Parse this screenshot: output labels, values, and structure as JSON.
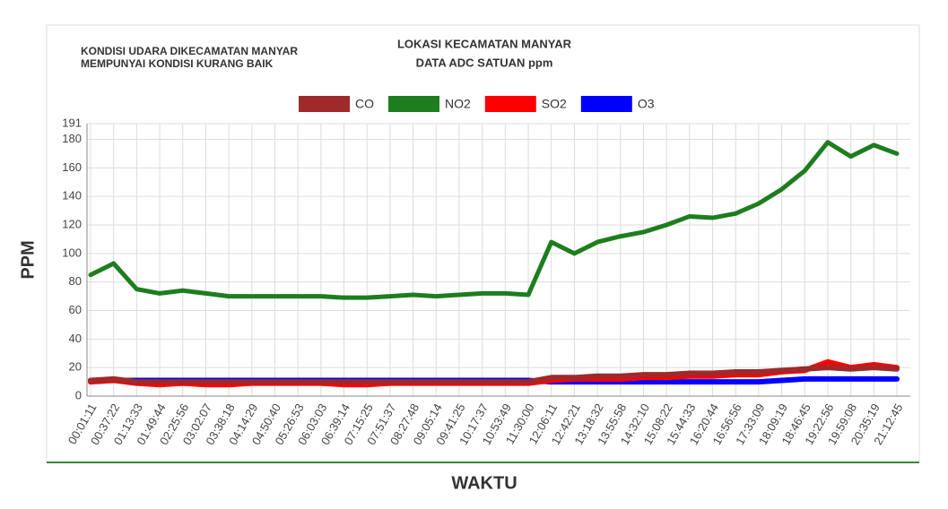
{
  "chart_data": {
    "type": "line",
    "note": [
      "KONDISI UDARA DIKECAMATAN MANYAR",
      "MEMPUNYAI KONDISI KURANG BAIK"
    ],
    "title": "LOKASI KECAMATAN MANYAR",
    "subtitle": "DATA ADC SATUAN ppm",
    "x_label": "WAKTU",
    "y_label": "PPM",
    "legend": "top",
    "grid": true,
    "categories": [
      "00:01:11",
      "00:37:22",
      "01:13:33",
      "01:49:44",
      "02:25:56",
      "03:02:07",
      "03:38:18",
      "04:14:29",
      "04:50:40",
      "05:26:53",
      "06:03:03",
      "06:39:14",
      "07:15:25",
      "07:51:37",
      "08:27:48",
      "09:05:14",
      "09:41:25",
      "10:17:37",
      "10:53:49",
      "11:30:00",
      "12:06:11",
      "12:42:21",
      "13:18:32",
      "13:55:58",
      "14:32:10",
      "15:08:22",
      "15:44:33",
      "16:20:44",
      "16:56:56",
      "17:33:09",
      "18:09:19",
      "18:46:45",
      "19:22:56",
      "19:59:08",
      "20:35:19",
      "21:12:45"
    ],
    "ylim": [
      0,
      191
    ],
    "yticks": [
      0,
      20,
      40,
      60,
      80,
      100,
      120,
      140,
      160,
      180,
      191
    ],
    "series": [
      {
        "name": "CO",
        "color": "#9e2a2b",
        "values": [
          11,
          12,
          10,
          10,
          10,
          10,
          10,
          10,
          10,
          10,
          10,
          10,
          10,
          10,
          10,
          10,
          10,
          10,
          10,
          10,
          13,
          13,
          14,
          14,
          15,
          15,
          16,
          16,
          17,
          17,
          18,
          19,
          20,
          19,
          20,
          19
        ]
      },
      {
        "name": "NO2",
        "color": "#1e7d1e",
        "values": [
          85,
          93,
          75,
          72,
          74,
          72,
          70,
          70,
          70,
          70,
          70,
          69,
          69,
          70,
          71,
          70,
          71,
          72,
          72,
          71,
          108,
          100,
          108,
          112,
          115,
          120,
          126,
          125,
          128,
          135,
          145,
          158,
          178,
          168,
          176,
          170
        ]
      },
      {
        "name": "SO2",
        "color": "#ff0000",
        "values": [
          10,
          11,
          9,
          8,
          9,
          8,
          8,
          9,
          9,
          9,
          9,
          8,
          8,
          9,
          9,
          9,
          9,
          9,
          9,
          9,
          11,
          12,
          12,
          12,
          13,
          13,
          14,
          14,
          15,
          15,
          17,
          18,
          24,
          20,
          22,
          20
        ]
      },
      {
        "name": "O3",
        "color": "#0000ff",
        "values": [
          11,
          11,
          11,
          11,
          11,
          11,
          11,
          11,
          11,
          11,
          11,
          11,
          11,
          11,
          11,
          11,
          11,
          11,
          11,
          11,
          10,
          10,
          10,
          10,
          10,
          10,
          10,
          10,
          10,
          10,
          11,
          12,
          12,
          12,
          12,
          12
        ]
      }
    ]
  }
}
